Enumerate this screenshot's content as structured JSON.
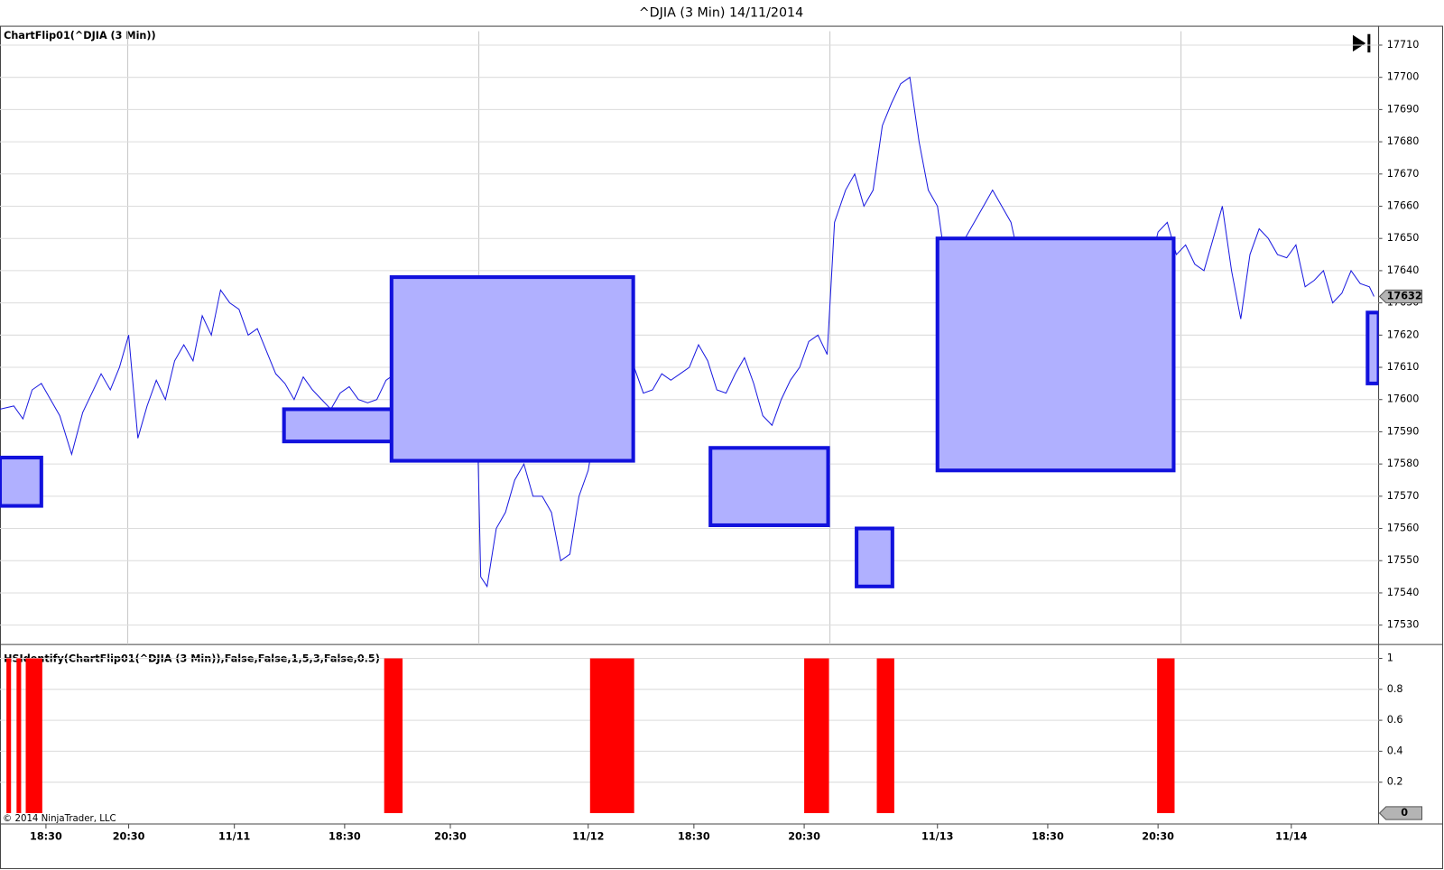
{
  "title": "^DJIA (3 Min)  14/11/2014",
  "footer": "© 2014 NinjaTrader, LLC",
  "chart_data": [
    {
      "type": "line",
      "label": "ChartFlip01(^DJIA (3 Min))",
      "color": "#1a1ae0",
      "xlim": [
        0,
        300
      ],
      "ylim": [
        17524,
        17716
      ],
      "yticks": [
        17530,
        17540,
        17550,
        17560,
        17570,
        17580,
        17590,
        17600,
        17610,
        17620,
        17630,
        17640,
        17650,
        17660,
        17670,
        17680,
        17690,
        17700,
        17710
      ],
      "grid": true,
      "xgrid": [
        27.8,
        104.2,
        180.6,
        257
      ],
      "last_value": 17632,
      "x": [
        0,
        3,
        5,
        7,
        9,
        11,
        13,
        15.6,
        18,
        20,
        22,
        24,
        26,
        28,
        30,
        32,
        34,
        36,
        38,
        40,
        42,
        44,
        46,
        48,
        50,
        52,
        54,
        56,
        58,
        60,
        62,
        64,
        66,
        68,
        70,
        72,
        74,
        76,
        78,
        80,
        82,
        84,
        86,
        88,
        90,
        92,
        94,
        96,
        98,
        100,
        102,
        103.6,
        104.6,
        106,
        108,
        110,
        112,
        114,
        116,
        118,
        120,
        122,
        124,
        126,
        128,
        130,
        132,
        134,
        136,
        138,
        140,
        142,
        144,
        146,
        148,
        150,
        152,
        154,
        156,
        158,
        160,
        162,
        164,
        166,
        168,
        170,
        172,
        174,
        176,
        178,
        180,
        181.6,
        184,
        186,
        188,
        190,
        192,
        194,
        196,
        198,
        200,
        202,
        204,
        206,
        208,
        210,
        212,
        214,
        216,
        218,
        220,
        222,
        224,
        226,
        228,
        230,
        232,
        234,
        236,
        238,
        240,
        242,
        244,
        246,
        248,
        250,
        252,
        254,
        256,
        258,
        260,
        262,
        264,
        266,
        268,
        270,
        272,
        274,
        276,
        278,
        280,
        282,
        284,
        286,
        288,
        290,
        292,
        294,
        296,
        298,
        299
      ],
      "values": [
        17597,
        17598,
        17594,
        17603,
        17605,
        17600,
        17595,
        17583,
        17596,
        17602,
        17608,
        17603,
        17610,
        17620,
        17588,
        17598,
        17606,
        17600,
        17612,
        17617,
        17612,
        17626,
        17620,
        17634,
        17630,
        17628,
        17620,
        17622,
        17615,
        17608,
        17605,
        17600,
        17607,
        17603,
        17600,
        17597,
        17602,
        17604,
        17600,
        17599,
        17600,
        17606,
        17608,
        17600,
        17597,
        17598,
        17602,
        17603,
        17598,
        17606,
        17612,
        17610,
        17545,
        17542,
        17560,
        17565,
        17575,
        17580,
        17570,
        17570,
        17565,
        17550,
        17552,
        17570,
        17578,
        17595,
        17603,
        17610,
        17605,
        17610,
        17602,
        17603,
        17608,
        17606,
        17608,
        17610,
        17617,
        17612,
        17603,
        17602,
        17608,
        17613,
        17605,
        17595,
        17592,
        17600,
        17606,
        17610,
        17618,
        17620,
        17614,
        17655,
        17665,
        17670,
        17660,
        17665,
        17685,
        17692,
        17698,
        17700,
        17680,
        17665,
        17660,
        17640,
        17645,
        17650,
        17655,
        17660,
        17665,
        17660,
        17655,
        17642,
        17628,
        17628,
        17600,
        17597,
        17612,
        17620,
        17618,
        17603,
        17613,
        17625,
        17640,
        17635,
        17648,
        17640,
        17652,
        17655,
        17645,
        17648,
        17642,
        17640,
        17650,
        17660,
        17640,
        17625,
        17645,
        17653,
        17650,
        17645,
        17644,
        17648,
        17635,
        17637,
        17640,
        17630,
        17633,
        17640,
        17636,
        17635,
        17632
      ],
      "box_fill": "#b0b0ff",
      "box_stroke": "#1212dd",
      "boxes": [
        {
          "x": [
            0,
            9
          ],
          "y": [
            17567,
            17582
          ]
        },
        {
          "x": [
            61.8,
            87.2
          ],
          "y": [
            17587,
            17597
          ]
        },
        {
          "x": [
            85.2,
            137.8
          ],
          "y": [
            17581,
            17638
          ]
        },
        {
          "x": [
            154.6,
            180.2
          ],
          "y": [
            17561,
            17585
          ]
        },
        {
          "x": [
            186.4,
            194.2
          ],
          "y": [
            17542,
            17560
          ]
        },
        {
          "x": [
            204,
            255.4
          ],
          "y": [
            17578,
            17650
          ]
        },
        {
          "x": [
            297.6,
            300
          ],
          "y": [
            17605,
            17627
          ]
        }
      ]
    },
    {
      "type": "bar",
      "label": "HSIdentify(ChartFlip01(^DJIA (3 Min)),False,False,1,5,3,False,0.5)",
      "color": "#ff0000",
      "xlim": [
        0,
        300
      ],
      "ylim": [
        -0.07,
        1.09
      ],
      "yticks": [
        0.2,
        0.4,
        0.6,
        0.8,
        1
      ],
      "grid": true,
      "last_value": 0,
      "bins": [
        [
          1.4,
          2.4
        ],
        [
          3.6,
          4.6
        ],
        [
          5.6,
          9.2
        ],
        [
          83.6,
          87.6
        ],
        [
          128.4,
          138
        ],
        [
          175,
          180.4
        ],
        [
          190.8,
          194.6
        ],
        [
          251.8,
          255.6
        ]
      ],
      "values": [
        1,
        1,
        1,
        1,
        1,
        1,
        1,
        1
      ],
      "xticks": [
        {
          "value": 10,
          "label": "18:30"
        },
        {
          "value": 28,
          "label": "20:30"
        },
        {
          "value": 51,
          "label": "11/11"
        },
        {
          "value": 75,
          "label": "18:30"
        },
        {
          "value": 98,
          "label": "20:30"
        },
        {
          "value": 128,
          "label": "11/12"
        },
        {
          "value": 151,
          "label": "18:30"
        },
        {
          "value": 175,
          "label": "20:30"
        },
        {
          "value": 204,
          "label": "11/13"
        },
        {
          "value": 228,
          "label": "18:30"
        },
        {
          "value": 252,
          "label": "20:30"
        },
        {
          "value": 281,
          "label": "11/14"
        }
      ]
    }
  ]
}
